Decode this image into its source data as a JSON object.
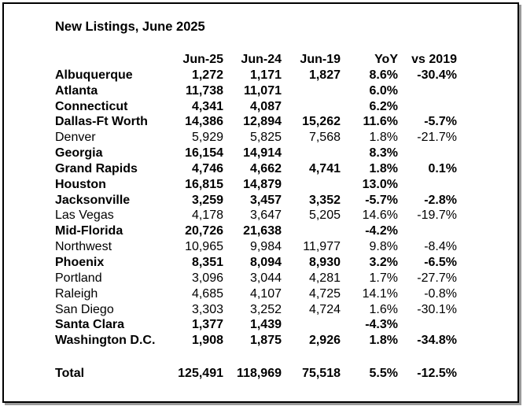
{
  "title": "New Listings, June 2025",
  "columns": [
    "",
    "Jun-25",
    "Jun-24",
    "Jun-19",
    "YoY",
    "vs 2019"
  ],
  "rows": [
    {
      "name": "Albuquerque",
      "jun25": "1,272",
      "jun24": "1,171",
      "jun19": "1,827",
      "yoy": "8.6%",
      "vs2019": "-30.4%",
      "bold": true
    },
    {
      "name": "Atlanta",
      "jun25": "11,738",
      "jun24": "11,071",
      "jun19": "",
      "yoy": "6.0%",
      "vs2019": "",
      "bold": true
    },
    {
      "name": "Connecticut",
      "jun25": "4,341",
      "jun24": "4,087",
      "jun19": "",
      "yoy": "6.2%",
      "vs2019": "",
      "bold": true
    },
    {
      "name": "Dallas-Ft Worth",
      "jun25": "14,386",
      "jun24": "12,894",
      "jun19": "15,262",
      "yoy": "11.6%",
      "vs2019": "-5.7%",
      "bold": true
    },
    {
      "name": "Denver",
      "jun25": "5,929",
      "jun24": "5,825",
      "jun19": "7,568",
      "yoy": "1.8%",
      "vs2019": "-21.7%",
      "bold": false
    },
    {
      "name": "Georgia",
      "jun25": "16,154",
      "jun24": "14,914",
      "jun19": "",
      "yoy": "8.3%",
      "vs2019": "",
      "bold": true
    },
    {
      "name": "Grand Rapids",
      "jun25": "4,746",
      "jun24": "4,662",
      "jun19": "4,741",
      "yoy": "1.8%",
      "vs2019": "0.1%",
      "bold": true
    },
    {
      "name": "Houston",
      "jun25": "16,815",
      "jun24": "14,879",
      "jun19": "",
      "yoy": "13.0%",
      "vs2019": "",
      "bold": true
    },
    {
      "name": "Jacksonville",
      "jun25": "3,259",
      "jun24": "3,457",
      "jun19": "3,352",
      "yoy": "-5.7%",
      "vs2019": "-2.8%",
      "bold": true
    },
    {
      "name": "Las Vegas",
      "jun25": "4,178",
      "jun24": "3,647",
      "jun19": "5,205",
      "yoy": "14.6%",
      "vs2019": "-19.7%",
      "bold": false
    },
    {
      "name": "Mid-Florida",
      "jun25": "20,726",
      "jun24": "21,638",
      "jun19": "",
      "yoy": "-4.2%",
      "vs2019": "",
      "bold": true
    },
    {
      "name": "Northwest",
      "jun25": "10,965",
      "jun24": "9,984",
      "jun19": "11,977",
      "yoy": "9.8%",
      "vs2019": "-8.4%",
      "bold": false
    },
    {
      "name": "Phoenix",
      "jun25": "8,351",
      "jun24": "8,094",
      "jun19": "8,930",
      "yoy": "3.2%",
      "vs2019": "-6.5%",
      "bold": true
    },
    {
      "name": "Portland",
      "jun25": "3,096",
      "jun24": "3,044",
      "jun19": "4,281",
      "yoy": "1.7%",
      "vs2019": "-27.7%",
      "bold": false
    },
    {
      "name": "Raleigh",
      "jun25": "4,685",
      "jun24": "4,107",
      "jun19": "4,725",
      "yoy": "14.1%",
      "vs2019": "-0.8%",
      "bold": false
    },
    {
      "name": "San Diego",
      "jun25": "3,303",
      "jun24": "3,252",
      "jun19": "4,724",
      "yoy": "1.6%",
      "vs2019": "-30.1%",
      "bold": false
    },
    {
      "name": "Santa Clara",
      "jun25": "1,377",
      "jun24": "1,439",
      "jun19": "",
      "yoy": "-4.3%",
      "vs2019": "",
      "bold": true
    },
    {
      "name": "Washington D.C.",
      "jun25": "1,908",
      "jun24": "1,875",
      "jun19": "2,926",
      "yoy": "1.8%",
      "vs2019": "-34.8%",
      "bold": true
    }
  ],
  "total": {
    "name": "Total",
    "jun25": "125,491",
    "jun24": "118,969",
    "jun19": "75,518",
    "yoy": "5.5%",
    "vs2019": "-12.5%"
  }
}
